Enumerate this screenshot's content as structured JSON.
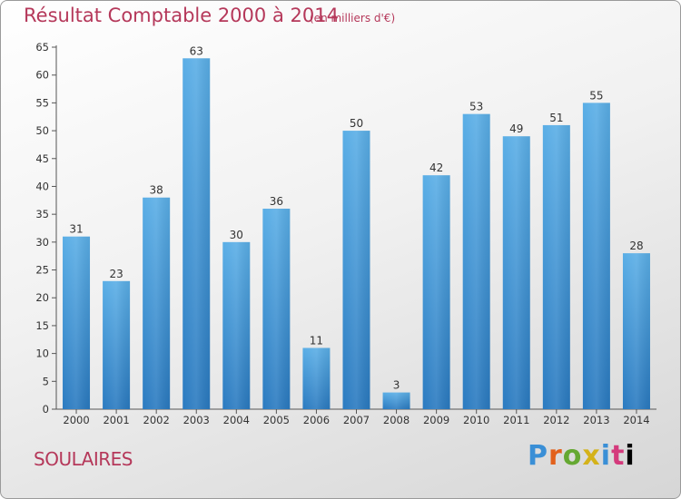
{
  "header": {
    "title": "Résultat Comptable 2000 à 2014",
    "subtitle": "(en milliers d'€)"
  },
  "footer": {
    "commune": "SOULAIRES",
    "logo": "Proxiti"
  },
  "colors": {
    "bar_light": "#5aaee6",
    "bar_dark": "#2a7ac0",
    "title": "#b5385a"
  },
  "chart_data": {
    "type": "bar",
    "title": "Résultat Comptable 2000 à 2014",
    "subtitle": "(en milliers d'€)",
    "xlabel": "",
    "ylabel": "",
    "categories": [
      "2000",
      "2001",
      "2002",
      "2003",
      "2004",
      "2005",
      "2006",
      "2007",
      "2008",
      "2009",
      "2010",
      "2011",
      "2012",
      "2013",
      "2014"
    ],
    "values": [
      31,
      23,
      38,
      63,
      30,
      36,
      11,
      50,
      3,
      42,
      53,
      49,
      51,
      55,
      28
    ],
    "ylim": [
      0,
      65
    ],
    "yticks": [
      0,
      5,
      10,
      15,
      20,
      25,
      30,
      35,
      40,
      45,
      50,
      55,
      60,
      65
    ],
    "grid": false,
    "legend": "none",
    "data_labels": true
  }
}
